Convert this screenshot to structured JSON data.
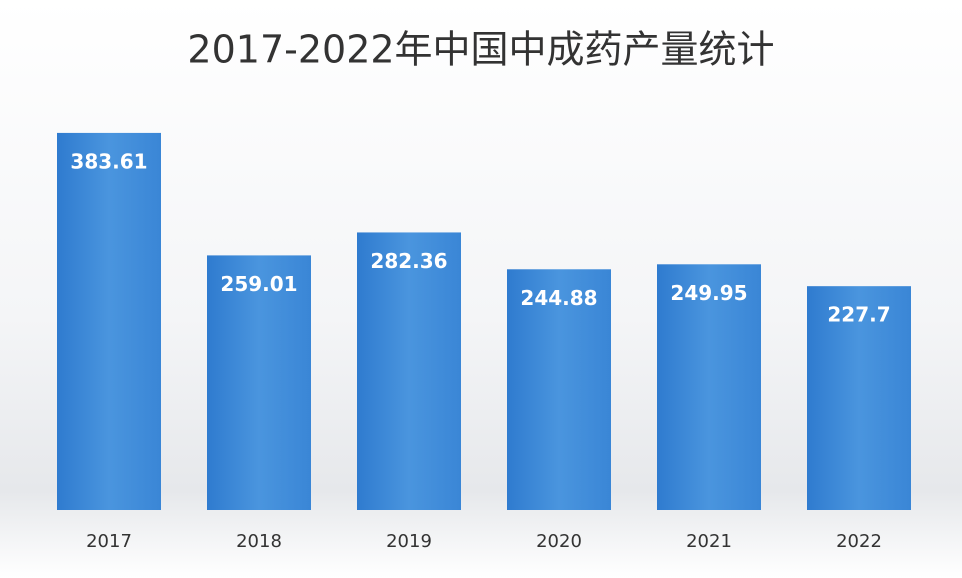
{
  "chart_data": {
    "type": "bar",
    "title": "2017-2022年中国中成药产量统计",
    "categories": [
      "2017",
      "2018",
      "2019",
      "2020",
      "2021",
      "2022"
    ],
    "values": [
      383.61,
      259.01,
      282.36,
      244.88,
      249.95,
      227.7
    ],
    "color": "#3d8bd9"
  }
}
